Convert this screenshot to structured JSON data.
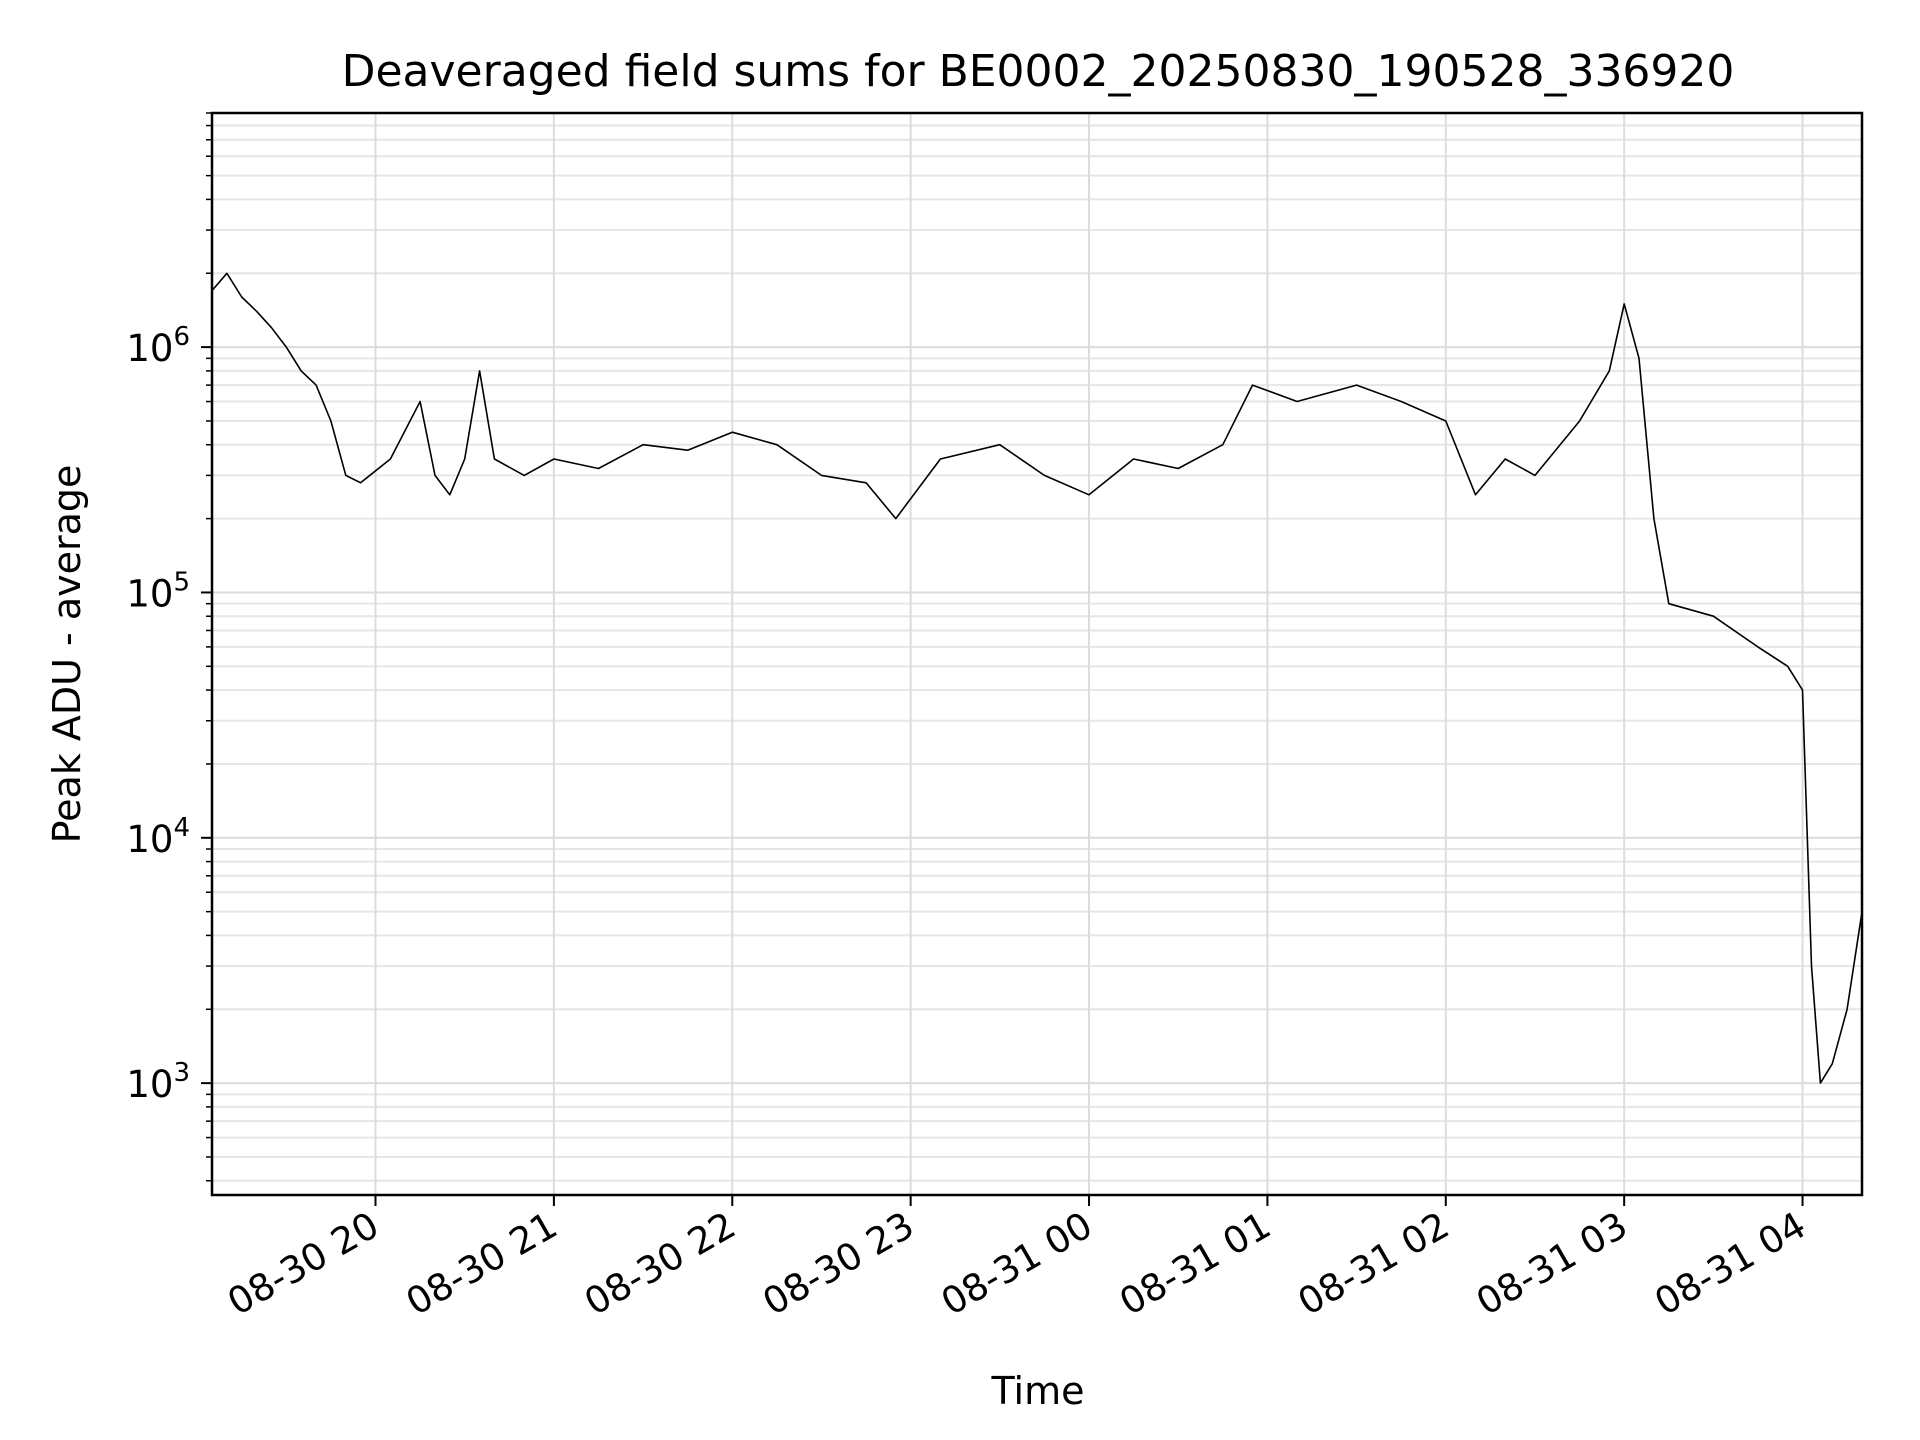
{
  "chart_data": {
    "type": "line",
    "title": "Deaveraged field sums for BE0002_20250830_190528_336920",
    "xlabel": "Time",
    "ylabel": "Peak ADU - average",
    "yscale": "log",
    "xlim": [
      "2025-08-30 19:05",
      "2025-08-31 04:20"
    ],
    "ylim": [
      350,
      9000000
    ],
    "grid": true,
    "line_color": "#000000",
    "x_ticks": [
      {
        "t": "2025-08-30 20:00",
        "label": "08-30 20"
      },
      {
        "t": "2025-08-30 21:00",
        "label": "08-30 21"
      },
      {
        "t": "2025-08-30 22:00",
        "label": "08-30 22"
      },
      {
        "t": "2025-08-30 23:00",
        "label": "08-30 23"
      },
      {
        "t": "2025-08-31 00:00",
        "label": "08-31 00"
      },
      {
        "t": "2025-08-31 01:00",
        "label": "08-31 01"
      },
      {
        "t": "2025-08-31 02:00",
        "label": "08-31 02"
      },
      {
        "t": "2025-08-31 03:00",
        "label": "08-31 03"
      },
      {
        "t": "2025-08-31 04:00",
        "label": "08-31 04"
      }
    ],
    "y_ticks": [
      {
        "value": 1000,
        "base": "10",
        "exp": "3"
      },
      {
        "value": 10000,
        "base": "10",
        "exp": "4"
      },
      {
        "value": 100000,
        "base": "10",
        "exp": "5"
      },
      {
        "value": 1000000,
        "base": "10",
        "exp": "6"
      }
    ],
    "series": [
      {
        "values": [
          [
            "2025-08-30 19:05",
            1700000
          ],
          [
            "2025-08-30 19:10",
            2000000
          ],
          [
            "2025-08-30 19:15",
            1600000
          ],
          [
            "2025-08-30 19:20",
            1400000
          ],
          [
            "2025-08-30 19:25",
            1200000
          ],
          [
            "2025-08-30 19:30",
            1000000
          ],
          [
            "2025-08-30 19:35",
            800000
          ],
          [
            "2025-08-30 19:40",
            700000
          ],
          [
            "2025-08-30 19:45",
            500000
          ],
          [
            "2025-08-30 19:50",
            300000
          ],
          [
            "2025-08-30 19:55",
            280000
          ],
          [
            "2025-08-30 20:05",
            350000
          ],
          [
            "2025-08-30 20:15",
            600000
          ],
          [
            "2025-08-30 20:20",
            300000
          ],
          [
            "2025-08-30 20:25",
            250000
          ],
          [
            "2025-08-30 20:30",
            350000
          ],
          [
            "2025-08-30 20:35",
            800000
          ],
          [
            "2025-08-30 20:40",
            350000
          ],
          [
            "2025-08-30 20:50",
            300000
          ],
          [
            "2025-08-30 21:00",
            350000
          ],
          [
            "2025-08-30 21:15",
            320000
          ],
          [
            "2025-08-30 21:30",
            400000
          ],
          [
            "2025-08-30 21:45",
            380000
          ],
          [
            "2025-08-30 22:00",
            450000
          ],
          [
            "2025-08-30 22:15",
            400000
          ],
          [
            "2025-08-30 22:30",
            300000
          ],
          [
            "2025-08-30 22:45",
            280000
          ],
          [
            "2025-08-30 22:55",
            200000
          ],
          [
            "2025-08-30 23:10",
            350000
          ],
          [
            "2025-08-30 23:30",
            400000
          ],
          [
            "2025-08-30 23:45",
            300000
          ],
          [
            "2025-08-31 00:00",
            250000
          ],
          [
            "2025-08-31 00:15",
            350000
          ],
          [
            "2025-08-31 00:30",
            320000
          ],
          [
            "2025-08-31 00:45",
            400000
          ],
          [
            "2025-08-31 00:55",
            700000
          ],
          [
            "2025-08-31 01:10",
            600000
          ],
          [
            "2025-08-31 01:30",
            700000
          ],
          [
            "2025-08-31 01:45",
            600000
          ],
          [
            "2025-08-31 02:00",
            500000
          ],
          [
            "2025-08-31 02:10",
            250000
          ],
          [
            "2025-08-31 02:20",
            350000
          ],
          [
            "2025-08-31 02:30",
            300000
          ],
          [
            "2025-08-31 02:45",
            500000
          ],
          [
            "2025-08-31 02:55",
            800000
          ],
          [
            "2025-08-31 03:00",
            1500000
          ],
          [
            "2025-08-31 03:05",
            900000
          ],
          [
            "2025-08-31 03:10",
            200000
          ],
          [
            "2025-08-31 03:15",
            90000
          ],
          [
            "2025-08-31 03:30",
            80000
          ],
          [
            "2025-08-31 03:45",
            60000
          ],
          [
            "2025-08-31 03:55",
            50000
          ],
          [
            "2025-08-31 04:00",
            40000
          ],
          [
            "2025-08-31 04:03",
            3000
          ],
          [
            "2025-08-31 04:06",
            1000
          ],
          [
            "2025-08-31 04:10",
            1200
          ],
          [
            "2025-08-31 04:15",
            2000
          ],
          [
            "2025-08-31 04:20",
            5000
          ]
        ]
      }
    ]
  }
}
